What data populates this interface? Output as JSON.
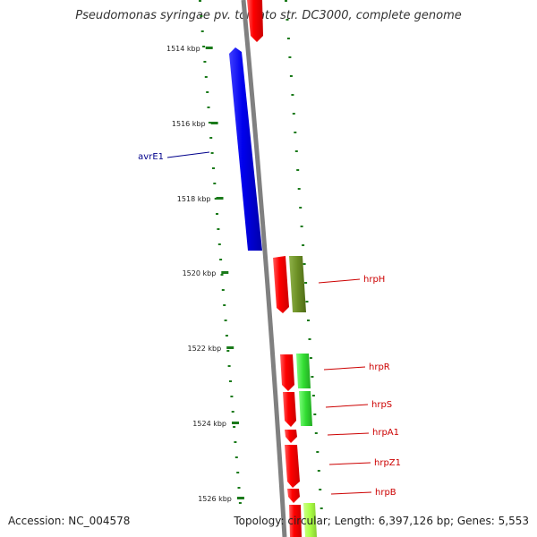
{
  "title": "Pseudomonas syringae pv. tomato str. DC3000, complete genome",
  "footer": {
    "accession": "Accession: NC_004578",
    "topology": "Topology: circular; Length: 6,397,126 bp; Genes: 5,553"
  },
  "kbp_ticks": [
    {
      "label": "1514 kbp",
      "value": 1514
    },
    {
      "label": "1516 kbp",
      "value": 1516
    },
    {
      "label": "1518 kbp",
      "value": 1518
    },
    {
      "label": "1520 kbp",
      "value": 1520
    },
    {
      "label": "1522 kbp",
      "value": 1522
    },
    {
      "label": "1524 kbp",
      "value": 1524
    },
    {
      "label": "1526 kbp",
      "value": 1526
    }
  ],
  "gene_labels": [
    {
      "name": "avrE1",
      "color": "#00008b",
      "side": "left"
    },
    {
      "name": "hrpH",
      "color": "#cc0000",
      "side": "right"
    },
    {
      "name": "hrpR",
      "color": "#cc0000",
      "side": "right"
    },
    {
      "name": "hrpS",
      "color": "#cc0000",
      "side": "right"
    },
    {
      "name": "hrpA1",
      "color": "#cc0000",
      "side": "right"
    },
    {
      "name": "hrpZ1",
      "color": "#cc0000",
      "side": "right"
    },
    {
      "name": "hrpB",
      "color": "#cc0000",
      "side": "right"
    }
  ],
  "colors": {
    "backbone": "#808080",
    "tick": "#1a7a1a",
    "blue_gene": "#0000ee",
    "red_gene": "#ff0000",
    "olive_gene": "#6b8e23",
    "green_gene": "#33dd33",
    "lime_gene": "#aaff44"
  }
}
